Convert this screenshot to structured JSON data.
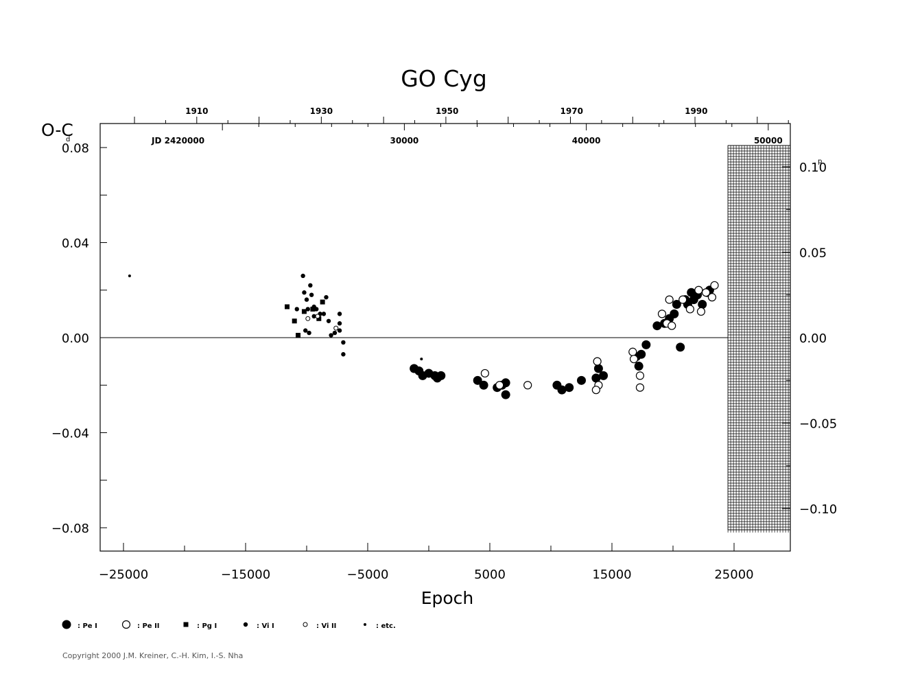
{
  "chart_data": {
    "type": "scatter",
    "title": "GO Cyg",
    "xlabel": "Epoch",
    "ylabel": "O-C",
    "ylabel_unit": "d",
    "right_unit": "p",
    "jd_label": "JD 2420000",
    "xlim": [
      -27000,
      29500
    ],
    "ylim": [
      -0.09,
      0.09
    ],
    "grid": false,
    "zero_line": true,
    "x_ticks": [
      -25000,
      -15000,
      -5000,
      5000,
      15000,
      25000
    ],
    "x_tick_labels": [
      "−25000",
      "−15000",
      "−5000",
      "5000",
      "15000",
      "25000"
    ],
    "y_ticks": [
      0.08,
      0.04,
      0.0,
      -0.04,
      -0.08
    ],
    "y_tick_labels": [
      "0.08",
      "0.04",
      "0.00",
      "−0.04",
      "−0.08"
    ],
    "right_ticks": [
      0.1,
      0.05,
      0.0,
      -0.05,
      -0.1
    ],
    "right_tick_labels": [
      "0.10",
      "0.05",
      "0.00",
      "−0.05",
      "−0.10"
    ],
    "year_ticks": [
      {
        "year": 1910,
        "epoch": -19000
      },
      {
        "year": 1930,
        "epoch": -8800
      },
      {
        "year": 1950,
        "epoch": 1500
      },
      {
        "year": 1970,
        "epoch": 11700
      },
      {
        "year": 1990,
        "epoch": 21900
      }
    ],
    "jd_ticks": [
      {
        "jd": 30000,
        "epoch": -2000
      },
      {
        "jd": 40000,
        "epoch": 12900
      },
      {
        "jd": 50000,
        "epoch": 27800
      }
    ],
    "hatch_start_epoch": 24500,
    "series": [
      {
        "name": "Pe I",
        "marker": "filled-large",
        "x": [
          -1200,
          -800,
          -500,
          0,
          500,
          700,
          1000,
          4000,
          4500,
          5600,
          6000,
          6300,
          6300,
          10500,
          10900,
          11500,
          12500,
          13700,
          13900,
          14300,
          17000,
          17200,
          17400,
          17800,
          18700,
          19300,
          19700,
          20100,
          20300,
          20600,
          21000,
          21200,
          21500,
          21700,
          22000,
          22400,
          22800,
          23000
        ],
        "y": [
          -0.013,
          -0.014,
          -0.016,
          -0.015,
          -0.016,
          -0.017,
          -0.016,
          -0.018,
          -0.02,
          -0.021,
          -0.02,
          -0.019,
          -0.024,
          -0.02,
          -0.022,
          -0.021,
          -0.018,
          -0.017,
          -0.013,
          -0.016,
          -0.008,
          -0.012,
          -0.007,
          -0.003,
          0.005,
          0.006,
          0.008,
          0.01,
          0.014,
          -0.004,
          0.016,
          0.014,
          0.019,
          0.016,
          0.018,
          0.014,
          0.019,
          0.02
        ]
      },
      {
        "name": "Pe II",
        "marker": "open-large",
        "x": [
          4600,
          5800,
          8100,
          13800,
          13900,
          13700,
          16700,
          16800,
          17300,
          17300,
          19100,
          19500,
          19700,
          19900,
          20800,
          21400,
          22100,
          22300,
          22700,
          23200,
          23400
        ],
        "y": [
          -0.015,
          -0.02,
          -0.02,
          -0.01,
          -0.02,
          -0.022,
          -0.006,
          -0.009,
          -0.016,
          -0.021,
          0.01,
          0.006,
          0.016,
          0.005,
          0.016,
          0.012,
          0.02,
          0.011,
          0.019,
          0.017,
          0.022
        ]
      },
      {
        "name": "Pg I",
        "marker": "filled-square",
        "x": [
          -11600,
          -11000,
          -10700,
          -10200,
          -9500,
          -9000,
          -8700
        ],
        "y": [
          0.013,
          0.007,
          0.001,
          0.011,
          0.012,
          0.008,
          0.015
        ]
      },
      {
        "name": "Vi I",
        "marker": "filled-small",
        "x": [
          -10800,
          -10300,
          -10200,
          -10000,
          -9700,
          -9600,
          -9900,
          -10100,
          -9400,
          -9200,
          -8900,
          -8600,
          -8400,
          -8200,
          -8000,
          -7700,
          -7300,
          -7300,
          -7300,
          -7000,
          -7000,
          -9800,
          -9400
        ],
        "y": [
          0.012,
          0.026,
          0.019,
          0.016,
          0.022,
          0.018,
          0.012,
          0.003,
          0.013,
          0.012,
          0.01,
          0.01,
          0.017,
          0.007,
          0.001,
          0.002,
          0.01,
          0.006,
          0.003,
          -0.002,
          -0.007,
          0.002,
          0.009
        ]
      },
      {
        "name": "Vi II",
        "marker": "open-small",
        "x": [
          -9900,
          -9100,
          -7600
        ],
        "y": [
          0.008,
          0.009,
          0.004
        ]
      },
      {
        "name": "etc.",
        "marker": "dot",
        "x": [
          -24500,
          -600
        ],
        "y": [
          0.026,
          -0.009
        ]
      }
    ],
    "legend": [
      {
        "symbol": "filled-large",
        "label": ": Pe I"
      },
      {
        "symbol": "open-large",
        "label": ": Pe II"
      },
      {
        "symbol": "filled-square",
        "label": ": Pg I"
      },
      {
        "symbol": "filled-small",
        "label": ": Vi I"
      },
      {
        "symbol": "open-small",
        "label": ": Vi II"
      },
      {
        "symbol": "dot",
        "label": ": etc."
      }
    ],
    "legend_position": "bottom-left"
  },
  "footer": {
    "copyright": "Copyright 2000 J.M. Kreiner, C.-H. Kim, I.-S. Nha"
  }
}
